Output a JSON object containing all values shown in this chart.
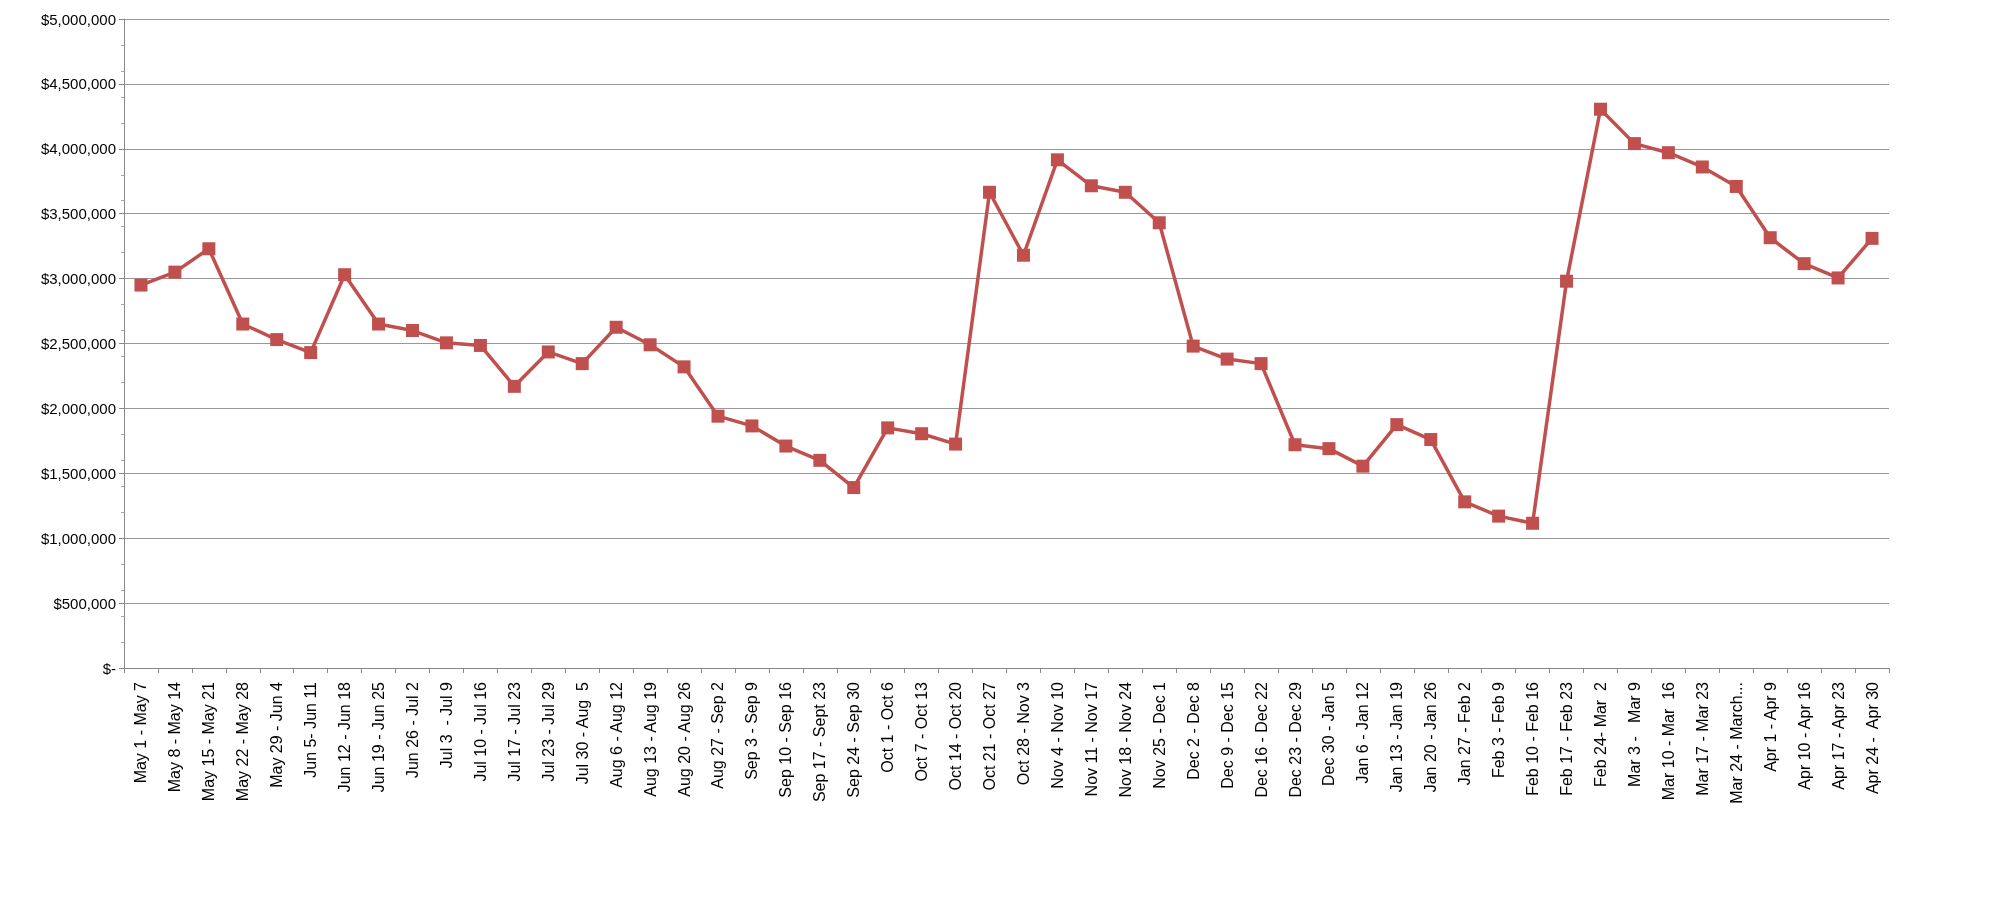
{
  "chart_data": {
    "type": "line",
    "marker": "square",
    "line_style": "solid",
    "grid": "y",
    "categories": [
      "May 1 - May 7",
      "May 8 - May 14",
      "May 15 - May 21",
      "May 22 - May 28",
      "May 29 - Jun 4",
      "Jun 5- Jun 11",
      "Jun 12 - Jun 18",
      "Jun 19 - Jun 25",
      "Jun 26 - Jul 2",
      "Jul 3  - Jul 9",
      "Jul 10 - Jul 16",
      "Jul 17 - Jul 23",
      "Jul 23 - Jul 29",
      "Jul 30 - Aug  5",
      "Aug 6 - Aug 12",
      "Aug 13 - Aug 19",
      "Aug 20 - Aug 26",
      "Aug 27 - Sep 2",
      "Sep 3 - Sep 9",
      "Sep 10 - Sep 16",
      "Sep 17 - Sept 23",
      "Sep 24 - Sep 30",
      "Oct 1 - Oct 6",
      "Oct 7 - Oct 13",
      "Oct 14 - Oct 20",
      "Oct 21 - Oct 27",
      "Oct 28 - Nov 3",
      "Nov 4 - Nov 10",
      "Nov 11 - Nov 17",
      "Nov 18 - Nov 24",
      "Nov 25 - Dec 1",
      "Dec 2 - Dec 8",
      "Dec 9 - Dec 15",
      "Dec 16 - Dec 22",
      "Dec 23 - Dec 29",
      "Dec 30 - Jan 5",
      "Jan 6 - Jan 12",
      "Jan 13 - Jan 19",
      "Jan 20 - Jan 26",
      "Jan 27 - Feb 2",
      "Feb 3 - Feb 9",
      "Feb 10 - Feb 16",
      "Feb 17 - Feb 23",
      "Feb 24- Mar  2",
      "Mar 3 -   Mar 9",
      "Mar 10 - Mar  16",
      "Mar 17 - Mar 23",
      "Mar 24 - March...",
      "Apr 1 - Apr 9",
      "Apr 10 - Apr 16",
      "Apr 17 - Apr 23",
      "Apr 24 -  Apr 30"
    ],
    "series": [
      {
        "color": "#c0504d",
        "values": [
          2950000,
          3050000,
          3230000,
          2650000,
          2530000,
          2430000,
          3030000,
          2650000,
          2600000,
          2505000,
          2485000,
          2170000,
          2435000,
          2345000,
          2625000,
          2490000,
          2320000,
          1940000,
          1865000,
          1710000,
          1600000,
          1390000,
          1850000,
          1805000,
          1725000,
          3665000,
          3180000,
          3915000,
          3715000,
          3665000,
          3430000,
          2480000,
          2380000,
          2345000,
          1720000,
          1690000,
          1555000,
          1875000,
          1760000,
          1280000,
          1170000,
          1115000,
          2980000,
          4305000,
          4040000,
          3970000,
          3860000,
          3710000,
          3315000,
          3115000,
          3005000,
          3310000
        ]
      }
    ],
    "ylim": [
      0,
      5000000
    ],
    "yticks": [
      {
        "value": 0,
        "label": "$-"
      },
      {
        "value": 500000,
        "label": "$500,000"
      },
      {
        "value": 1000000,
        "label": "$1,000,000"
      },
      {
        "value": 1500000,
        "label": "$1,500,000"
      },
      {
        "value": 2000000,
        "label": "$2,000,000"
      },
      {
        "value": 2500000,
        "label": "$2,500,000"
      },
      {
        "value": 3000000,
        "label": "$3,000,000"
      },
      {
        "value": 3500000,
        "label": "$3,500,000"
      },
      {
        "value": 4000000,
        "label": "$4,000,000"
      },
      {
        "value": 4500000,
        "label": "$4,500,000"
      },
      {
        "value": 5000000,
        "label": "$5,000,000"
      }
    ]
  }
}
